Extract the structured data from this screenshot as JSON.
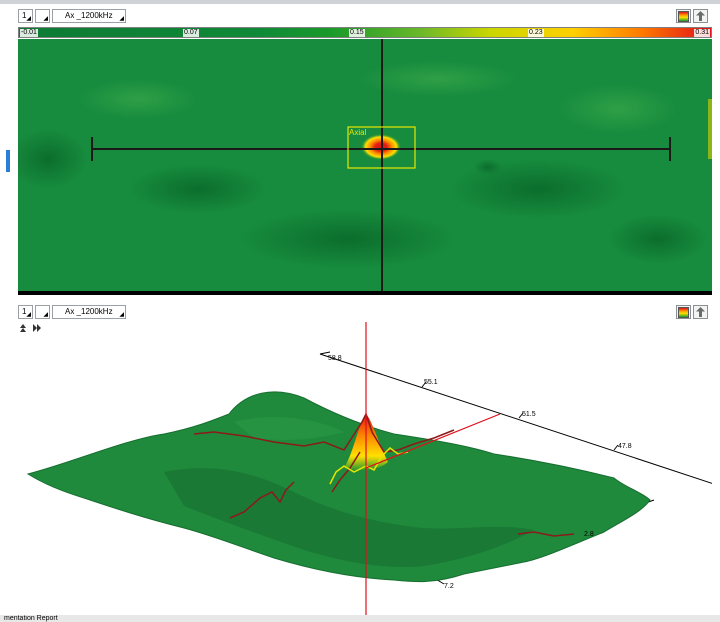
{
  "top_panel": {
    "channel_value": "1",
    "secondary_value": "",
    "signal_label": "Ax _1200kHz",
    "colorbar": {
      "ticks": [
        "-0.01",
        "0.07",
        "0.15",
        "0.23",
        "0.31"
      ],
      "min": -0.01,
      "max": 0.31
    },
    "roi_label": "Axial",
    "colors": {
      "background": "#148a3c",
      "hot": "#e0101a",
      "roi": "#e6e600"
    }
  },
  "bottom_panel": {
    "channel_value": "1",
    "secondary_value": "",
    "signal_label": "Ax _1200kHz",
    "axis_labels": [
      "58.8",
      "55.1",
      "51.5",
      "47.8",
      "2.8",
      "7.2"
    ],
    "colors": {
      "surface": "#1f8a3c",
      "marker": "#e0101a",
      "trace_primary": "#8b1a1a",
      "trace_secondary": "#e6e600"
    }
  },
  "status_bar": {
    "text": "mentation   Report"
  }
}
